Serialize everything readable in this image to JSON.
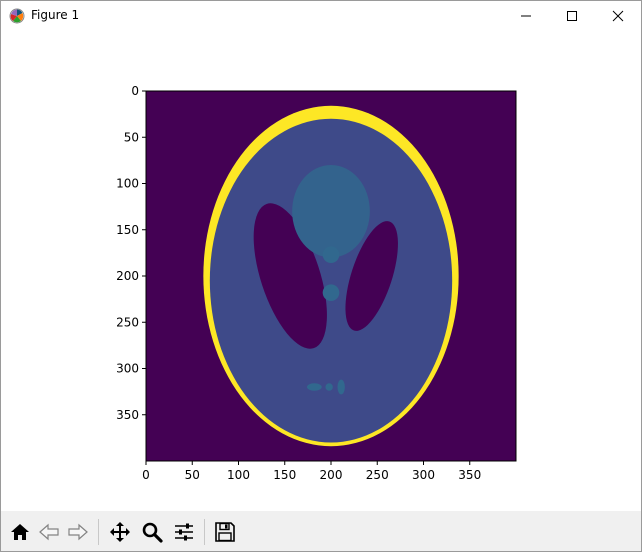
{
  "window": {
    "title": "Figure 1",
    "controls": {
      "minimize": "minimize",
      "maximize": "maximize",
      "close": "close"
    }
  },
  "toolbar": {
    "items": [
      {
        "name": "home-icon",
        "enabled": true
      },
      {
        "name": "back-arrow-icon",
        "enabled": false
      },
      {
        "name": "forward-arrow-icon",
        "enabled": false
      },
      {
        "name": "pan-arrows-icon",
        "enabled": true
      },
      {
        "name": "zoom-magnifier-icon",
        "enabled": true
      },
      {
        "name": "configure-subplots-icon",
        "enabled": true
      },
      {
        "name": "save-floppy-icon",
        "enabled": true
      }
    ]
  },
  "chart_data": {
    "type": "heatmap",
    "description_source": "Shepp-Logan phantom image displayed with imshow (viridis colormap)",
    "image_size": [
      400,
      400
    ],
    "xlim": [
      0,
      400
    ],
    "ylim": [
      400,
      0
    ],
    "x_ticks": [
      0,
      50,
      100,
      150,
      200,
      250,
      300,
      350
    ],
    "y_ticks": [
      0,
      50,
      100,
      150,
      200,
      250,
      300,
      350
    ],
    "colormap": "viridis",
    "colors": {
      "background": "#440154",
      "skull": "#fde725",
      "brain": "#3e4a89",
      "gray_matter": "#3b528b",
      "ventricles": "#440154",
      "lesion_large": "#33638d",
      "small_features": "#31688e"
    },
    "ellipses": [
      {
        "label": "skull",
        "cx": 200,
        "cy": 200,
        "rx": 138,
        "ry": 184,
        "angle": 0,
        "color": "#fde725"
      },
      {
        "label": "brain",
        "cx": 200,
        "cy": 205,
        "rx": 131,
        "ry": 175,
        "angle": 0,
        "color": "#3e4a89"
      },
      {
        "label": "ventricle-right",
        "cx": 244,
        "cy": 200,
        "rx": 22,
        "ry": 62,
        "angle": 18,
        "color": "#440154"
      },
      {
        "label": "ventricle-left",
        "cx": 156,
        "cy": 200,
        "rx": 32,
        "ry": 82,
        "angle": -18,
        "color": "#440154"
      },
      {
        "label": "upper-lesion",
        "cx": 200,
        "cy": 130,
        "rx": 42,
        "ry": 50,
        "angle": 0,
        "color": "#33638d"
      },
      {
        "label": "mid-spot",
        "cx": 200,
        "cy": 177,
        "rx": 9,
        "ry": 9,
        "angle": 0,
        "color": "#31688e"
      },
      {
        "label": "lower-spot",
        "cx": 200,
        "cy": 218,
        "rx": 9,
        "ry": 9,
        "angle": 0,
        "color": "#31688e"
      },
      {
        "label": "bottom-left-dot",
        "cx": 182,
        "cy": 320,
        "rx": 8,
        "ry": 4,
        "angle": 0,
        "color": "#31688e"
      },
      {
        "label": "bottom-mid-dot",
        "cx": 198,
        "cy": 320,
        "rx": 4,
        "ry": 4,
        "angle": 0,
        "color": "#31688e"
      },
      {
        "label": "bottom-right-dot",
        "cx": 211,
        "cy": 320,
        "rx": 4,
        "ry": 8,
        "angle": 0,
        "color": "#31688e"
      }
    ]
  }
}
